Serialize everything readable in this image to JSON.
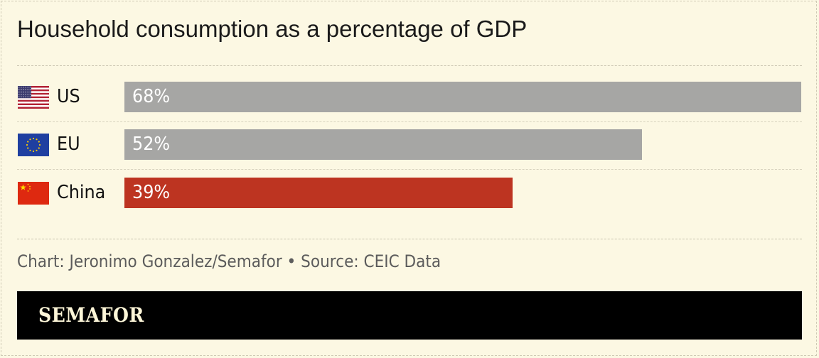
{
  "header": {
    "title": "Household consumption as a percentage of GDP"
  },
  "chart_data": {
    "type": "bar",
    "orientation": "horizontal",
    "title": "Household consumption as a percentage of GDP",
    "categories": [
      "US",
      "EU",
      "China"
    ],
    "values": [
      68,
      52,
      39
    ],
    "value_labels": [
      "68%",
      "52%",
      "39%"
    ],
    "value_unit": "%",
    "xlim": [
      0,
      68
    ],
    "grid": false,
    "colors": [
      "#a6a6a4",
      "#a6a6a4",
      "#bd3421"
    ],
    "flag_icons": [
      "us-flag-icon",
      "eu-flag-icon",
      "china-flag-icon"
    ]
  },
  "footer": {
    "credit": "Chart: Jeronimo Gonzalez/Semafor • Source: CEIC Data"
  },
  "brand": {
    "name": "SEMAFOR",
    "bar_color": "#000000",
    "text_color": "#fdf6d8"
  }
}
